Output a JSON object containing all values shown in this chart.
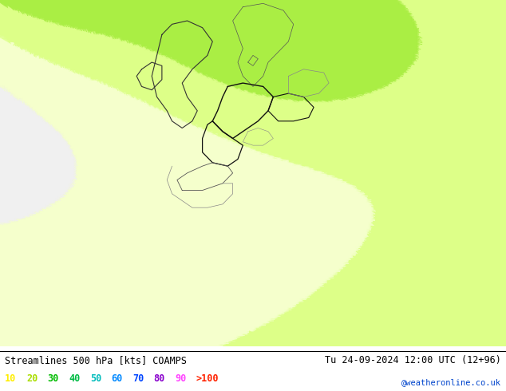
{
  "title_left": "Streamlines 500 hPa [kts] COAMPS",
  "title_right": "Tu 24-09-2024 12:00 UTC (12+96)",
  "credit": "@weatheronline.co.uk",
  "legend_values": [
    "10",
    "20",
    "30",
    "40",
    "50",
    "60",
    "70",
    "80",
    "90",
    ">100"
  ],
  "legend_colors": [
    "#ffee00",
    "#aadd00",
    "#00bb00",
    "#00bb44",
    "#00bbbb",
    "#0088ff",
    "#0044ff",
    "#8800cc",
    "#ff44ff",
    "#ff2200"
  ],
  "background_color": "#ffffff",
  "colorbar_bounds": [
    0,
    10,
    20,
    30,
    40,
    50,
    60,
    70,
    80,
    90,
    100,
    200
  ],
  "colorbar_colors": [
    "#f0f0f0",
    "#f5ffcc",
    "#ddff88",
    "#aaee44",
    "#44cc00",
    "#00cccc",
    "#0088ff",
    "#0044ff",
    "#8800cc",
    "#ff44ff",
    "#ff2200"
  ],
  "figsize": [
    6.34,
    4.9
  ],
  "dpi": 100,
  "title_fontsize": 8.5,
  "credit_fontsize": 7.5,
  "legend_fontsize": 8.5
}
